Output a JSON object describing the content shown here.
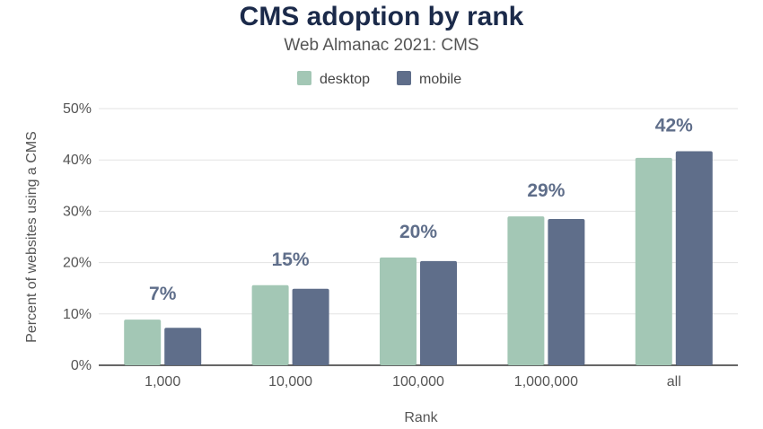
{
  "chart_data": {
    "type": "bar",
    "title": "CMS adoption by rank",
    "subtitle": "Web Almanac 2021: CMS",
    "xlabel": "Rank",
    "ylabel": "Percent of websites using a CMS",
    "categories": [
      "1,000",
      "10,000",
      "100,000",
      "1,000,000",
      "all"
    ],
    "series": [
      {
        "name": "desktop",
        "color": "#a3c7b5",
        "values": [
          8.9,
          15.6,
          21.0,
          29.0,
          40.4
        ]
      },
      {
        "name": "mobile",
        "color": "#5f6e8a",
        "values": [
          7.3,
          14.9,
          20.3,
          28.5,
          41.7
        ]
      }
    ],
    "data_labels": [
      "7%",
      "15%",
      "20%",
      "29%",
      "42%"
    ],
    "y_ticks": [
      "0%",
      "10%",
      "20%",
      "30%",
      "40%",
      "50%"
    ],
    "ylim": [
      0,
      50
    ],
    "grid": true,
    "legend_position": "top-center"
  }
}
